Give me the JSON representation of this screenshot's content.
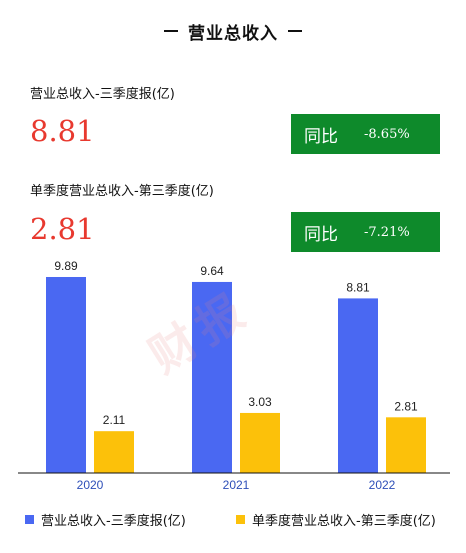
{
  "header": {
    "title": "营业总收入"
  },
  "cumulative": {
    "label": "营业总收入-三季度报(亿)",
    "value": "8.81",
    "yoy_label": "同比",
    "yoy_value": "-8.65%"
  },
  "quarterly": {
    "label": "单季度营业总收入-第三季度(亿)",
    "value": "2.81",
    "yoy_label": "同比",
    "yoy_value": "-7.21%"
  },
  "colors": {
    "value_red": "#e8392f",
    "yoy_green": "#0e8a2b",
    "series_blue": "#4a68f2",
    "series_yellow": "#fcc10a",
    "axis_label_blue": "#2e4fb8"
  },
  "chart_data": {
    "type": "bar",
    "categories": [
      "2020",
      "2021",
      "2022"
    ],
    "series": [
      {
        "name": "营业总收入-三季度报(亿)",
        "values": [
          9.89,
          9.64,
          8.81
        ],
        "labels": [
          "9.89",
          "9.64",
          "8.81"
        ],
        "color": "#4a68f2"
      },
      {
        "name": "单季度营业总收入-第三季度(亿)",
        "values": [
          2.11,
          3.03,
          2.81
        ],
        "labels": [
          "2.11",
          "3.03",
          "2.81"
        ],
        "color": "#fcc10a"
      }
    ],
    "ylim": [
      0,
      11
    ],
    "grid": false,
    "legend": "bottom"
  }
}
